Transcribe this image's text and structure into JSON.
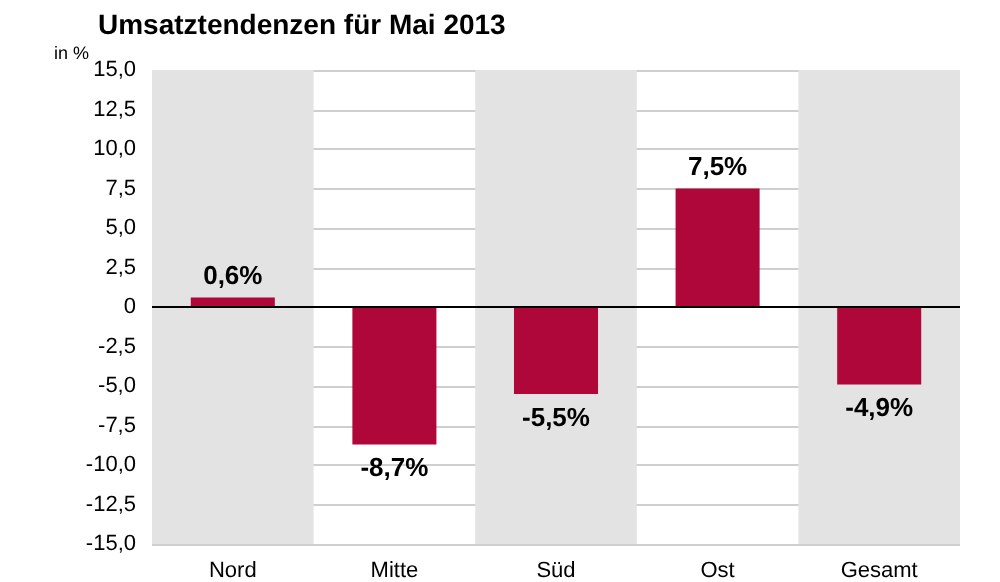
{
  "chart_data": {
    "type": "bar",
    "title": "Umsatztendenzen für Mai 2013",
    "ylabel": "in %",
    "categories": [
      "Nord",
      "Mitte",
      "Süd",
      "Ost",
      "Gesamt"
    ],
    "values": [
      0.6,
      -8.7,
      -5.5,
      7.5,
      -4.9
    ],
    "value_labels": [
      "0,6%",
      "-8,7%",
      "-5,5%",
      "7,5%",
      "-4,9%"
    ],
    "color": "#b0073a",
    "ylim": [
      -15,
      15
    ],
    "yticks": [
      {
        "value": 15,
        "label": "15,0"
      },
      {
        "value": 12.5,
        "label": "12,5"
      },
      {
        "value": 10,
        "label": "10,0"
      },
      {
        "value": 7.5,
        "label": "7,5"
      },
      {
        "value": 5,
        "label": "5,0"
      },
      {
        "value": 2.5,
        "label": "2,5"
      },
      {
        "value": 0,
        "label": "0"
      },
      {
        "value": -2.5,
        "label": "-2,5"
      },
      {
        "value": -5,
        "label": "-5,0"
      },
      {
        "value": -7.5,
        "label": "-7,5"
      },
      {
        "value": -10,
        "label": "-10,0"
      },
      {
        "value": -12.5,
        "label": "-12,5"
      },
      {
        "value": -15,
        "label": "-15,0"
      }
    ],
    "ref_lines": [
      {
        "axis": "y",
        "value": 0,
        "color": "#000000"
      }
    ],
    "bands": [
      {
        "axis": "x",
        "from": "Nord",
        "to": "Nord",
        "color": "#e3e3e3"
      },
      {
        "axis": "x",
        "from": "Süd",
        "to": "Süd",
        "color": "#e3e3e3"
      },
      {
        "axis": "x",
        "from": "Gesamt",
        "to": "Gesamt",
        "color": "#e3e3e3"
      }
    ],
    "grid": "y"
  }
}
